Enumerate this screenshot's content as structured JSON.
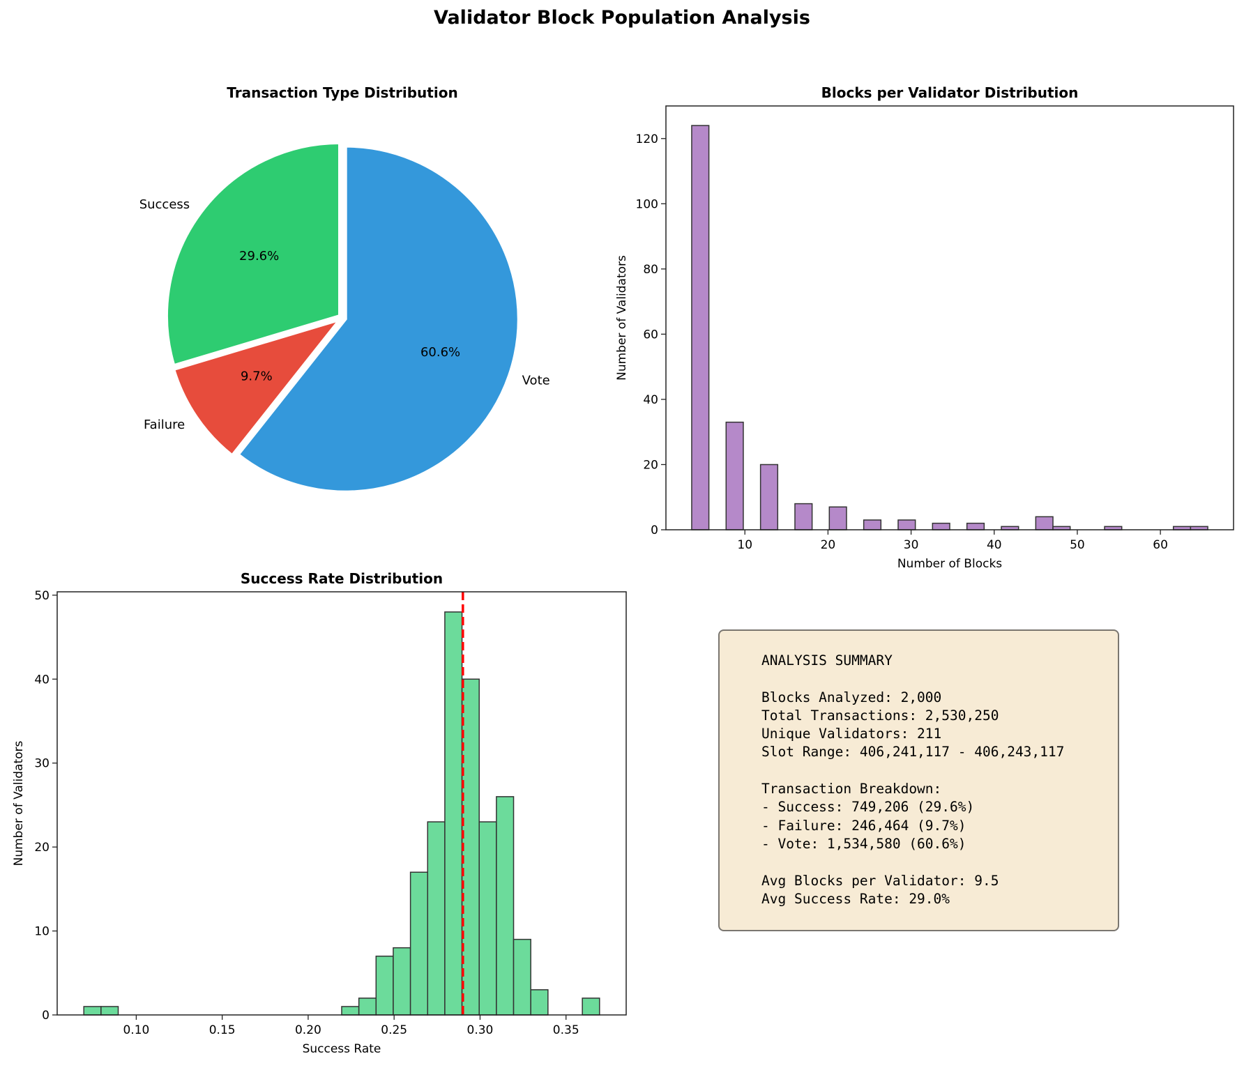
{
  "title": "Validator Block Population Analysis",
  "chart_data": [
    {
      "type": "pie",
      "title": "Transaction Type Distribution",
      "labels": [
        "Success",
        "Failure",
        "Vote"
      ],
      "values": [
        29.6,
        9.7,
        60.6
      ],
      "value_labels": [
        "29.6%",
        "9.7%",
        "60.6%"
      ],
      "colors": [
        "#2ecc71",
        "#e74c3c",
        "#3498db"
      ],
      "start_angle": 90,
      "direction": "counterclockwise"
    },
    {
      "type": "bar",
      "subtype": "histogram",
      "title": "Blocks per Validator Distribution",
      "xlabel": "Number of Blocks",
      "ylabel": "Number of Validators",
      "bin_range": [
        3.6,
        65.7
      ],
      "counts": [
        124,
        0,
        33,
        0,
        20,
        0,
        8,
        0,
        7,
        0,
        3,
        0,
        3,
        0,
        2,
        0,
        2,
        0,
        1,
        0,
        4,
        1,
        0,
        0,
        1,
        0,
        0,
        0,
        1,
        1
      ],
      "xlim": [
        0.5,
        68.8
      ],
      "ylim": [
        0,
        130
      ],
      "xticks": [
        "10",
        "20",
        "30",
        "40",
        "50",
        "60"
      ],
      "yticks": [
        "0",
        "20",
        "40",
        "60",
        "80",
        "100",
        "120"
      ],
      "color": "#b589c9",
      "edge_color": "#333333"
    },
    {
      "type": "bar",
      "subtype": "histogram",
      "title": "Success Rate Distribution",
      "xlabel": "Success Rate",
      "ylabel": "Number of Validators",
      "bin_range": [
        0.0695,
        0.3695
      ],
      "counts": [
        1,
        1,
        0,
        0,
        0,
        0,
        0,
        0,
        0,
        0,
        0,
        0,
        0,
        0,
        0,
        1,
        2,
        7,
        8,
        17,
        23,
        48,
        40,
        23,
        26,
        9,
        3,
        0,
        0,
        2
      ],
      "mean_line": 0.29,
      "mean_line_color": "#ff0000",
      "xlim": [
        0.054,
        0.385
      ],
      "ylim": [
        0,
        50.4
      ],
      "xticks": [
        "0.10",
        "0.15",
        "0.20",
        "0.25",
        "0.30",
        "0.35"
      ],
      "yticks": [
        "0",
        "10",
        "20",
        "30",
        "40",
        "50"
      ],
      "color": "#6cdb9b",
      "edge_color": "#333333"
    }
  ],
  "summary": {
    "text": "ANALYSIS SUMMARY\n\nBlocks Analyzed: 2,000\nTotal Transactions: 2,530,250\nUnique Validators: 211\nSlot Range: 406,241,117 - 406,243,117\n\nTransaction Breakdown:\n- Success: 749,206 (29.6%)\n- Failure: 246,464 (9.7%)\n- Vote: 1,534,580 (60.6%)\n\nAvg Blocks per Validator: 9.5\nAvg Success Rate: 29.0%",
    "background": "#f7ebd5"
  }
}
